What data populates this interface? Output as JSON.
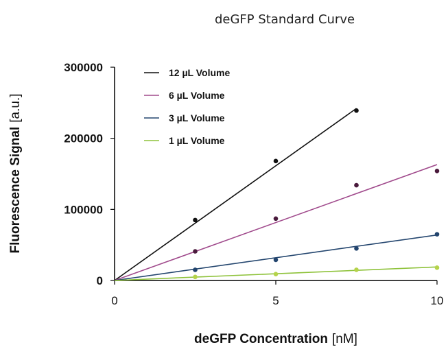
{
  "chart_data": {
    "type": "scatter",
    "title": "deGFP Standard Curve",
    "xlabel": {
      "main": "deGFP Concentration",
      "unit": "[nM]"
    },
    "ylabel": {
      "main": "Fluorescence Signal",
      "unit": "[a.u.]"
    },
    "xlim": [
      0,
      10
    ],
    "ylim": [
      0,
      300000
    ],
    "x_ticks": [
      0,
      5,
      10
    ],
    "x_tick_labels": [
      "0",
      "5",
      "10"
    ],
    "y_ticks": [
      0,
      100000,
      200000,
      300000
    ],
    "y_tick_labels": [
      "0",
      "100000",
      "200000",
      "300000"
    ],
    "grid": false,
    "legend_position": "top-left",
    "series": [
      {
        "name": "12 µL Volume",
        "color": "#111111",
        "points": [
          [
            2.5,
            85000
          ],
          [
            5,
            168000
          ],
          [
            7.5,
            239000
          ]
        ],
        "fit": [
          [
            0,
            0
          ],
          [
            7.5,
            242000
          ]
        ]
      },
      {
        "name": "6 µL Volume",
        "color": "#a04a8c",
        "marker_color": "#4a1a3c",
        "points": [
          [
            2.5,
            41000
          ],
          [
            5,
            87000
          ],
          [
            7.5,
            134000
          ],
          [
            10,
            154000
          ]
        ],
        "fit": [
          [
            0,
            0
          ],
          [
            10,
            163000
          ]
        ]
      },
      {
        "name": "3 µL Volume",
        "color": "#23456e",
        "points": [
          [
            2.5,
            15000
          ],
          [
            5,
            29000
          ],
          [
            7.5,
            45000
          ],
          [
            10,
            65000
          ]
        ],
        "fit": [
          [
            0,
            0
          ],
          [
            10,
            64000
          ]
        ]
      },
      {
        "name": "1 µL Volume",
        "color": "#8ec23a",
        "marker_color": "#b5d34a",
        "points": [
          [
            2.5,
            5000
          ],
          [
            5,
            9000
          ],
          [
            7.5,
            15000
          ],
          [
            10,
            18000
          ]
        ],
        "fit": [
          [
            0,
            0
          ],
          [
            10,
            19000
          ]
        ]
      }
    ]
  }
}
